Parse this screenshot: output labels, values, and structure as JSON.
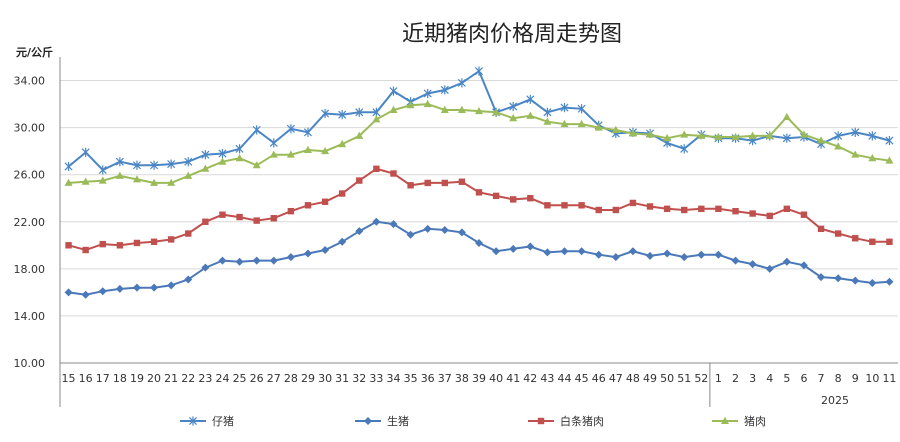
{
  "chart_data": {
    "type": "line",
    "title": "近期猪肉价格周走势图",
    "y_unit_label": "元/公斤",
    "ylim": [
      10,
      36
    ],
    "yticks": [
      "10.00",
      "14.00",
      "18.00",
      "22.00",
      "26.00",
      "30.00",
      "34.00"
    ],
    "ytick_values": [
      10,
      14,
      18,
      22,
      26,
      30,
      34
    ],
    "grid": true,
    "legend_position": "bottom",
    "categories": [
      "15",
      "16",
      "17",
      "18",
      "19",
      "20",
      "21",
      "22",
      "23",
      "24",
      "25",
      "26",
      "27",
      "28",
      "29",
      "30",
      "31",
      "32",
      "33",
      "34",
      "35",
      "36",
      "37",
      "38",
      "39",
      "40",
      "41",
      "42",
      "43",
      "44",
      "45",
      "46",
      "47",
      "48",
      "49",
      "50",
      "51",
      "52",
      "1",
      "2",
      "3",
      "4",
      "5",
      "6",
      "7",
      "8",
      "9",
      "10",
      "11"
    ],
    "year_label": "2025",
    "year_break_before_index": 38,
    "series": [
      {
        "name": "仔猪",
        "color": "#4a86c5",
        "marker": "asterisk",
        "values": [
          26.7,
          27.9,
          26.4,
          27.1,
          26.8,
          26.8,
          26.9,
          27.1,
          27.7,
          27.8,
          28.2,
          29.8,
          28.7,
          29.9,
          29.6,
          31.2,
          31.1,
          31.3,
          31.3,
          33.1,
          32.2,
          32.9,
          33.2,
          33.8,
          34.8,
          31.3,
          31.8,
          32.4,
          31.3,
          31.7,
          31.6,
          30.2,
          29.5,
          29.6,
          29.5,
          28.7,
          28.2,
          29.4,
          29.1,
          29.1,
          28.9,
          29.3,
          29.1,
          29.2,
          28.6,
          29.3,
          29.6,
          29.3,
          28.9
        ]
      },
      {
        "name": "生猪",
        "color": "#4a78b8",
        "marker": "diamond",
        "values": [
          16.0,
          15.8,
          16.1,
          16.3,
          16.4,
          16.4,
          16.6,
          17.1,
          18.1,
          18.7,
          18.6,
          18.7,
          18.7,
          19.0,
          19.3,
          19.6,
          20.3,
          21.2,
          22.0,
          21.8,
          20.9,
          21.4,
          21.3,
          21.1,
          20.2,
          19.5,
          19.7,
          19.9,
          19.4,
          19.5,
          19.5,
          19.2,
          19.0,
          19.5,
          19.1,
          19.3,
          19.0,
          19.2,
          19.2,
          18.7,
          18.4,
          18.0,
          18.6,
          18.3,
          17.3,
          17.2,
          17.0,
          16.8,
          16.9
        ]
      },
      {
        "name": "白条猪肉",
        "color": "#c0504d",
        "marker": "square",
        "values": [
          20.0,
          19.6,
          20.1,
          20.0,
          20.2,
          20.3,
          20.5,
          21.0,
          22.0,
          22.6,
          22.4,
          22.1,
          22.3,
          22.9,
          23.4,
          23.7,
          24.4,
          25.5,
          26.5,
          26.1,
          25.1,
          25.3,
          25.3,
          25.4,
          24.5,
          24.2,
          23.9,
          24.0,
          23.4,
          23.4,
          23.4,
          23.0,
          23.0,
          23.6,
          23.3,
          23.1,
          23.0,
          23.1,
          23.1,
          22.9,
          22.7,
          22.5,
          23.1,
          22.6,
          21.4,
          21.0,
          20.6,
          20.3,
          20.3
        ]
      },
      {
        "name": "猪肉",
        "color": "#9bbb59",
        "marker": "triangle",
        "values": [
          25.3,
          25.4,
          25.5,
          25.9,
          25.6,
          25.3,
          25.3,
          25.9,
          26.5,
          27.1,
          27.4,
          26.8,
          27.7,
          27.7,
          28.1,
          28.0,
          28.6,
          29.3,
          30.7,
          31.5,
          31.9,
          32.0,
          31.5,
          31.5,
          31.4,
          31.3,
          30.8,
          31.0,
          30.5,
          30.3,
          30.3,
          30.0,
          29.8,
          29.5,
          29.4,
          29.1,
          29.4,
          29.3,
          29.2,
          29.2,
          29.3,
          29.3,
          30.9,
          29.4,
          28.9,
          28.4,
          27.7,
          27.4,
          27.2
        ]
      }
    ]
  }
}
